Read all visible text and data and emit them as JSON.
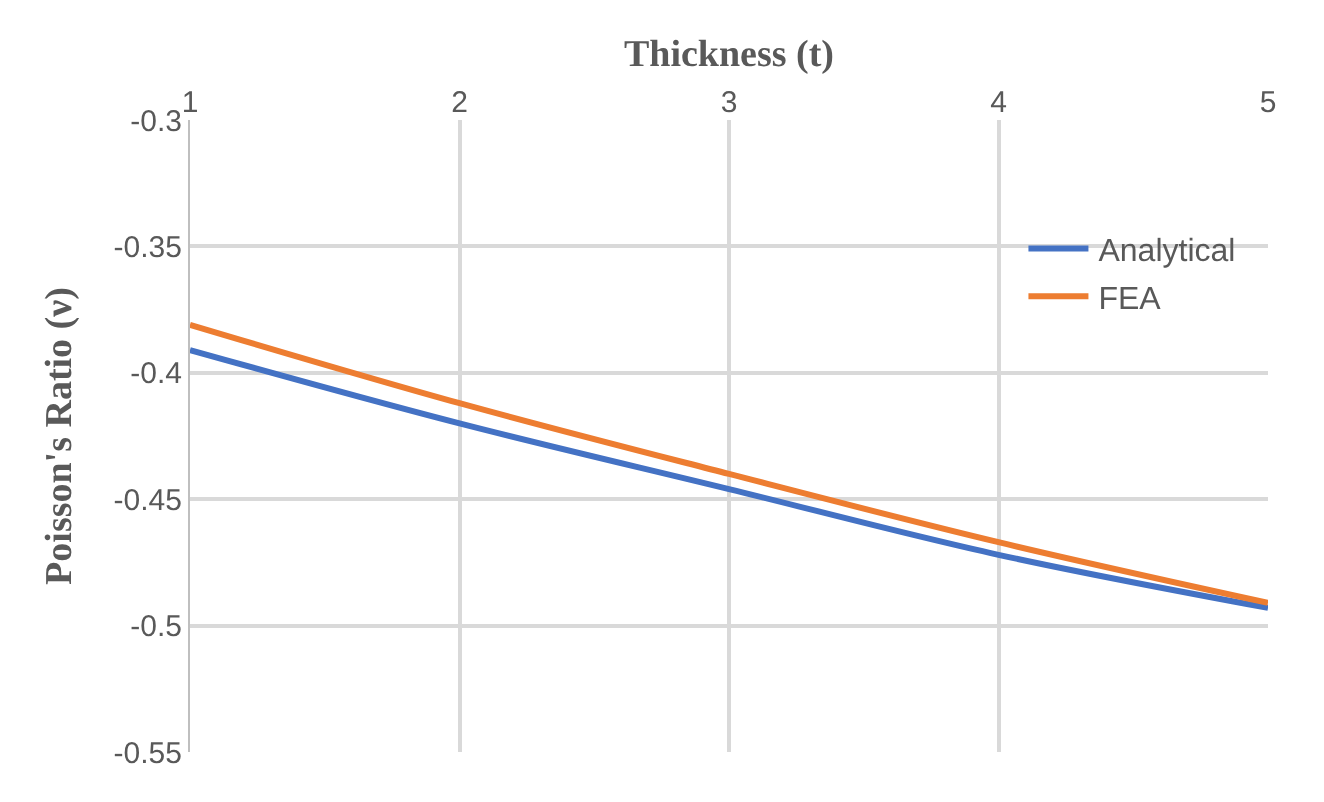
{
  "chart_data": {
    "type": "line",
    "xlabel": "Thickness (t)",
    "ylabel": "Poisson's Ratio (ν)",
    "x": [
      1,
      2,
      3,
      4,
      5
    ],
    "xlim": [
      1,
      5
    ],
    "xticks": [
      1,
      2,
      3,
      4,
      5
    ],
    "ylim": [
      -0.55,
      -0.3
    ],
    "yticks": [
      -0.55,
      -0.5,
      -0.45,
      -0.4,
      -0.35,
      -0.3
    ],
    "grid": true,
    "legend": "top right",
    "marker": "none",
    "line_style": "solid",
    "series": [
      {
        "name": "Analytical",
        "color": "#4472c4",
        "values": [
          -0.391,
          -0.42,
          -0.446,
          -0.472,
          -0.493
        ]
      },
      {
        "name": "FEA",
        "color": "#ed7d31",
        "values": [
          -0.381,
          -0.412,
          -0.44,
          -0.467,
          -0.491
        ]
      }
    ]
  }
}
